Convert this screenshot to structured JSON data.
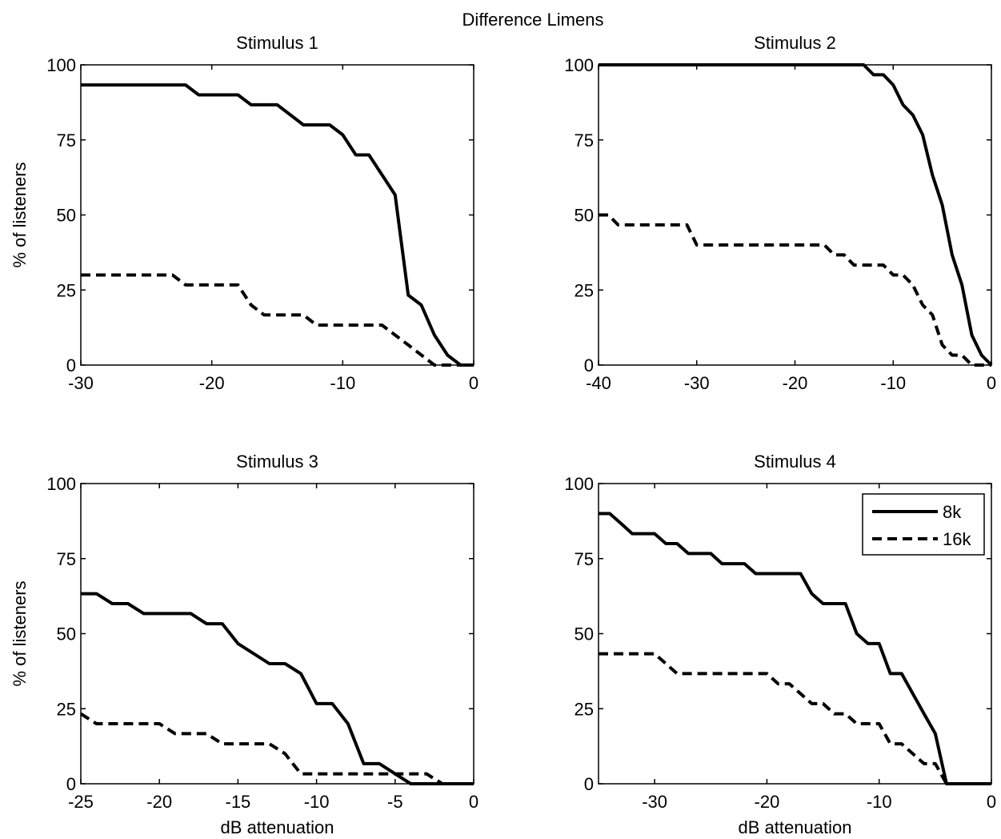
{
  "figure": {
    "suptitle": "Difference Limens"
  },
  "legend": {
    "entries": [
      {
        "label": "8k",
        "style": "solid"
      },
      {
        "label": "16k",
        "style": "dashed"
      }
    ],
    "placement": "top-right of Stimulus 4 panel"
  },
  "chart_data": [
    {
      "type": "line",
      "title": "Stimulus 1",
      "xlabel": "",
      "ylabel": "% of listeners",
      "xlim": [
        -30,
        0
      ],
      "ylim": [
        0,
        100
      ],
      "xticks": [
        -30,
        -20,
        -10,
        0
      ],
      "yticks": [
        0,
        25,
        50,
        75,
        100
      ],
      "grid": false,
      "series": [
        {
          "name": "8k",
          "style": "solid",
          "x": [
            -30,
            -22,
            -21,
            -18,
            -17,
            -15,
            -13,
            -11,
            -10,
            -9,
            -8,
            -6,
            -5,
            -4,
            -3,
            -2,
            -1,
            0
          ],
          "y": [
            93.3,
            93.3,
            90,
            90,
            86.7,
            86.7,
            80,
            80,
            76.7,
            70,
            70,
            56.7,
            23.3,
            20,
            10,
            3.3,
            0,
            0
          ]
        },
        {
          "name": "16k",
          "style": "dashed",
          "x": [
            -30,
            -23,
            -22,
            -18,
            -17,
            -16,
            -13,
            -12,
            -7,
            -6,
            -5,
            -3,
            0
          ],
          "y": [
            30,
            30,
            26.7,
            26.7,
            20,
            16.7,
            16.7,
            13.3,
            13.3,
            10,
            6.7,
            0,
            0
          ]
        }
      ]
    },
    {
      "type": "line",
      "title": "Stimulus 2",
      "xlabel": "",
      "ylabel": "",
      "xlim": [
        -40,
        0
      ],
      "ylim": [
        0,
        100
      ],
      "xticks": [
        -40,
        -30,
        -20,
        -10,
        0
      ],
      "yticks": [
        0,
        25,
        50,
        75,
        100
      ],
      "grid": false,
      "series": [
        {
          "name": "8k",
          "style": "solid",
          "x": [
            -40,
            -13,
            -12,
            -11,
            -10,
            -9,
            -8,
            -7,
            -6,
            -5,
            -4,
            -3,
            -2,
            -1,
            0
          ],
          "y": [
            100,
            100,
            96.7,
            96.7,
            93.3,
            86.7,
            83.3,
            76.7,
            63.3,
            53.3,
            36.7,
            26.7,
            10,
            3.3,
            0
          ]
        },
        {
          "name": "16k",
          "style": "dashed",
          "x": [
            -40,
            -39,
            -38,
            -31,
            -30,
            -17,
            -16,
            -15,
            -14,
            -11,
            -10,
            -9,
            -8,
            -7,
            -6,
            -5,
            -4,
            -3,
            -2,
            -1,
            0
          ],
          "y": [
            50,
            50,
            46.7,
            46.7,
            40,
            40,
            36.7,
            36.7,
            33.3,
            33.3,
            30,
            30,
            26.7,
            20,
            16.7,
            6.7,
            3.3,
            3.3,
            0,
            0,
            0
          ]
        }
      ]
    },
    {
      "type": "line",
      "title": "Stimulus 3",
      "xlabel": "dB attenuation",
      "ylabel": "% of listeners",
      "xlim": [
        -25,
        0
      ],
      "ylim": [
        0,
        100
      ],
      "xticks": [
        -25,
        -20,
        -15,
        -10,
        -5,
        0
      ],
      "yticks": [
        0,
        25,
        50,
        75,
        100
      ],
      "grid": false,
      "series": [
        {
          "name": "8k",
          "style": "solid",
          "x": [
            -25,
            -24,
            -23,
            -22,
            -21,
            -18,
            -17,
            -16,
            -15,
            -13,
            -12,
            -11,
            -10,
            -9,
            -8,
            -7,
            -6,
            -5,
            -4,
            -3,
            0
          ],
          "y": [
            63.3,
            63.3,
            60,
            60,
            56.7,
            56.7,
            53.3,
            53.3,
            46.7,
            40,
            40,
            36.7,
            26.7,
            26.7,
            20,
            6.7,
            6.7,
            3.3,
            0,
            0,
            0
          ]
        },
        {
          "name": "16k",
          "style": "dashed",
          "x": [
            -25,
            -24,
            -20,
            -19,
            -17,
            -16,
            -13,
            -12,
            -11,
            -3,
            -2,
            0
          ],
          "y": [
            23.3,
            20,
            20,
            16.7,
            16.7,
            13.3,
            13.3,
            10,
            3.3,
            3.3,
            0,
            0
          ]
        }
      ]
    },
    {
      "type": "line",
      "title": "Stimulus 4",
      "xlabel": "dB attenuation",
      "ylabel": "",
      "xlim": [
        -35,
        0
      ],
      "ylim": [
        0,
        100
      ],
      "xticks": [
        -30,
        -20,
        -10,
        0
      ],
      "yticks": [
        0,
        25,
        50,
        75,
        100
      ],
      "grid": false,
      "series": [
        {
          "name": "8k",
          "style": "solid",
          "x": [
            -35,
            -34,
            -33,
            -32,
            -30,
            -29,
            -28,
            -27,
            -25,
            -24,
            -22,
            -21,
            -20,
            -18,
            -17,
            -16,
            -15,
            -13,
            -12,
            -11,
            -10,
            -9,
            -8,
            -7,
            -6,
            -5,
            -4,
            -3,
            0
          ],
          "y": [
            90,
            90,
            86.7,
            83.3,
            83.3,
            80,
            80,
            76.7,
            76.7,
            73.3,
            73.3,
            70,
            70,
            70,
            70,
            63.3,
            60,
            60,
            50,
            46.7,
            46.7,
            36.7,
            36.7,
            30,
            23.3,
            16.7,
            0,
            0,
            0
          ]
        },
        {
          "name": "16k",
          "style": "dashed",
          "x": [
            -35,
            -30,
            -29,
            -28,
            -20,
            -19,
            -18,
            -17,
            -16,
            -15,
            -14,
            -13,
            -12,
            -11,
            -10,
            -9,
            -8,
            -7,
            -6,
            -5,
            -4,
            -3,
            0
          ],
          "y": [
            43.3,
            43.3,
            40,
            36.7,
            36.7,
            33.3,
            33.3,
            30,
            26.7,
            26.7,
            23.3,
            23.3,
            20,
            20,
            20,
            13.3,
            13.3,
            10,
            6.7,
            6.7,
            0,
            0,
            0
          ]
        }
      ]
    }
  ]
}
